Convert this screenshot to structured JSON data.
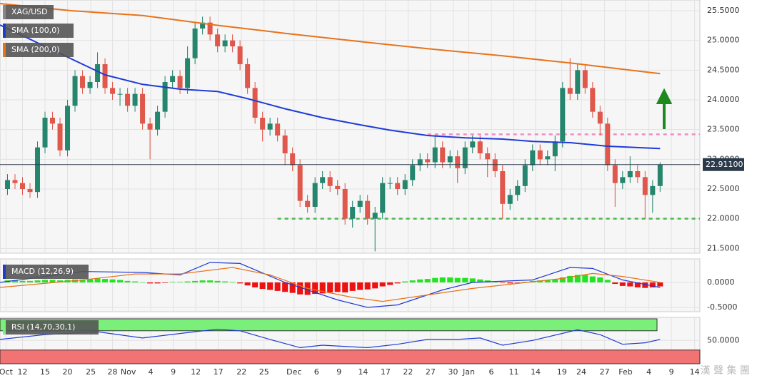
{
  "chart_data": [
    {
      "type": "candlestick",
      "name": "XAG/USD",
      "color_up": "#26866d",
      "color_down": "#e0574b",
      "xlim": [
        -1,
        92.3
      ],
      "ylim": [
        21.42,
        25.68
      ],
      "grid": true,
      "yticks": [
        {
          "value": 21.5,
          "label": "21.5000"
        },
        {
          "value": 22.0,
          "label": "22.0000"
        },
        {
          "value": 22.5,
          "label": "22.5000"
        },
        {
          "value": 23.0,
          "label": "23.0000"
        },
        {
          "value": 23.5,
          "label": "23.5000"
        },
        {
          "value": 24.0,
          "label": "24.0000"
        },
        {
          "value": 24.5,
          "label": "24.5000"
        },
        {
          "value": 25.0,
          "label": "25.0000"
        },
        {
          "value": 25.5,
          "label": "25.5000"
        }
      ],
      "open": [
        22.5,
        22.65,
        22.6,
        22.5,
        22.45,
        23.2,
        23.7,
        23.6,
        23.15,
        23.9,
        24.4,
        24.2,
        24.3,
        24.6,
        24.2,
        24.1,
        24.1,
        23.9,
        24.1,
        23.6,
        23.5,
        23.8,
        24.3,
        24.4,
        24.2,
        24.7,
        25.2,
        25.3,
        25.1,
        24.9,
        25.0,
        24.9,
        24.6,
        24.2,
        23.7,
        23.5,
        23.6,
        23.4,
        23.1,
        22.9,
        22.3,
        22.2,
        22.6,
        22.7,
        22.55,
        22.5,
        22.0,
        22.2,
        22.3,
        22.0,
        22.1,
        22.6,
        22.6,
        22.5,
        22.65,
        22.9,
        23.0,
        22.95,
        23.2,
        22.95,
        23.05,
        22.85,
        23.2,
        23.3,
        23.1,
        23.0,
        22.8,
        22.25,
        22.4,
        22.55,
        22.9,
        23.15,
        23.0,
        23.05,
        23.3,
        24.2,
        24.1,
        24.5,
        24.2,
        23.8,
        23.6,
        22.9,
        22.6,
        22.7,
        22.8,
        22.7,
        22.4,
        22.55
      ],
      "high": [
        22.75,
        22.75,
        22.7,
        22.6,
        23.3,
        23.8,
        23.8,
        23.7,
        24.0,
        24.5,
        24.5,
        24.4,
        24.8,
        24.7,
        24.3,
        24.2,
        24.2,
        24.2,
        24.2,
        23.7,
        23.9,
        24.4,
        24.5,
        24.5,
        24.9,
        25.3,
        25.4,
        25.4,
        25.2,
        25.1,
        25.1,
        25.0,
        24.7,
        24.3,
        23.8,
        23.7,
        23.7,
        23.5,
        23.2,
        23.0,
        22.4,
        22.7,
        22.8,
        22.8,
        22.65,
        22.6,
        22.3,
        22.4,
        22.4,
        22.2,
        22.7,
        22.7,
        22.7,
        22.75,
        23.0,
        23.1,
        23.1,
        23.4,
        23.3,
        23.15,
        23.15,
        23.3,
        23.4,
        23.4,
        23.2,
        23.1,
        22.9,
        22.5,
        22.65,
        23.0,
        23.25,
        23.25,
        23.15,
        23.4,
        24.3,
        24.7,
        24.6,
        24.6,
        24.3,
        23.9,
        23.7,
        23.0,
        22.8,
        23.05,
        22.9,
        22.8,
        22.65,
        22.95
      ],
      "low": [
        22.4,
        22.5,
        22.4,
        22.35,
        22.35,
        23.1,
        23.5,
        23.05,
        23.05,
        23.8,
        24.1,
        24.1,
        24.2,
        24.1,
        24.0,
        23.9,
        23.8,
        23.8,
        23.5,
        23.0,
        23.4,
        23.7,
        24.2,
        24.1,
        24.1,
        24.6,
        25.1,
        25.0,
        24.8,
        24.8,
        24.8,
        24.5,
        24.1,
        23.6,
        23.3,
        23.4,
        23.3,
        22.9,
        22.8,
        22.2,
        22.1,
        22.1,
        22.5,
        22.45,
        22.4,
        21.9,
        21.85,
        22.1,
        21.9,
        21.45,
        22.0,
        22.5,
        22.4,
        22.4,
        22.55,
        22.8,
        22.85,
        22.85,
        22.85,
        22.85,
        22.6,
        22.75,
        23.1,
        23.0,
        22.7,
        22.7,
        22.0,
        22.15,
        22.3,
        22.45,
        22.8,
        22.9,
        22.9,
        22.8,
        23.2,
        24.0,
        24.0,
        24.1,
        23.7,
        23.4,
        22.8,
        22.2,
        22.5,
        22.6,
        22.6,
        22.0,
        22.1,
        22.45
      ],
      "close": [
        22.65,
        22.6,
        22.5,
        22.45,
        23.2,
        23.7,
        23.6,
        23.15,
        23.9,
        24.4,
        24.2,
        24.3,
        24.6,
        24.2,
        24.1,
        24.1,
        23.9,
        24.1,
        23.6,
        23.5,
        23.8,
        24.3,
        24.4,
        24.2,
        24.7,
        25.2,
        25.3,
        25.1,
        24.9,
        25.0,
        24.9,
        24.6,
        24.2,
        23.7,
        23.5,
        23.6,
        23.4,
        23.1,
        22.9,
        22.3,
        22.2,
        22.6,
        22.7,
        22.55,
        22.5,
        22.0,
        22.2,
        22.3,
        22.0,
        22.1,
        22.6,
        22.6,
        22.5,
        22.65,
        22.9,
        23.0,
        22.95,
        23.2,
        22.95,
        23.05,
        22.85,
        23.2,
        23.3,
        23.1,
        23.0,
        22.8,
        22.25,
        22.4,
        22.55,
        22.9,
        23.15,
        23.0,
        23.05,
        23.3,
        24.2,
        24.1,
        24.5,
        24.2,
        23.8,
        23.6,
        22.9,
        22.6,
        22.7,
        22.8,
        22.7,
        22.4,
        22.55,
        22.91
      ],
      "overlays": [
        {
          "name": "SMA (100,0)",
          "color": "#1f3bd6",
          "x": [
            -1,
            4,
            9,
            13,
            18,
            23,
            28,
            32,
            37,
            42,
            47,
            51,
            56,
            61,
            66,
            70,
            75,
            80,
            87
          ],
          "values": [
            25.26,
            24.96,
            24.66,
            24.42,
            24.26,
            24.18,
            24.14,
            24.02,
            23.85,
            23.7,
            23.58,
            23.49,
            23.4,
            23.36,
            23.34,
            23.3,
            23.28,
            23.22,
            23.18
          ]
        },
        {
          "name": "SMA (200,0)",
          "color": "#e8731a",
          "x": [
            -1,
            8.5,
            18,
            27.6,
            37,
            47,
            56,
            66,
            75,
            87
          ],
          "values": [
            25.62,
            25.5,
            25.42,
            25.26,
            25.12,
            24.98,
            24.86,
            24.74,
            24.62,
            24.44
          ]
        }
      ],
      "hlines": [
        {
          "value": 22.0,
          "color": "#4cb84c",
          "from": 36
        },
        {
          "value": 23.42,
          "color": "#f28cc0",
          "from": 56
        }
      ],
      "last_price": {
        "value": 22.911,
        "label": "22.91100"
      }
    },
    {
      "type": "macd",
      "name": "MACD (12,26,9)",
      "xlim": [
        -1,
        92.3
      ],
      "ylim": [
        -0.586,
        0.471
      ],
      "yticks": [
        {
          "value": 0,
          "label": "0.0000"
        },
        {
          "value": -0.5,
          "label": "-0.5000"
        }
      ],
      "color_up": "#22e322",
      "color_down": "#ee1111",
      "histogram": [
        0.04,
        0.04,
        0.03,
        0.03,
        0.04,
        0.05,
        0.05,
        0.04,
        0.05,
        0.06,
        0.06,
        0.07,
        0.08,
        0.07,
        0.06,
        0.05,
        0.03,
        0.02,
        0.0,
        -0.02,
        -0.02,
        -0.01,
        0.01,
        0.01,
        0.02,
        0.03,
        0.04,
        0.04,
        0.03,
        0.02,
        0.01,
        -0.02,
        -0.06,
        -0.1,
        -0.13,
        -0.15,
        -0.17,
        -0.19,
        -0.21,
        -0.24,
        -0.25,
        -0.23,
        -0.22,
        -0.2,
        -0.19,
        -0.2,
        -0.17,
        -0.15,
        -0.14,
        -0.12,
        -0.08,
        -0.05,
        -0.02,
        0.02,
        0.04,
        0.06,
        0.07,
        0.09,
        0.1,
        0.1,
        0.09,
        0.09,
        0.08,
        0.06,
        0.04,
        0.02,
        -0.01,
        -0.02,
        -0.01,
        0.01,
        0.03,
        0.04,
        0.05,
        0.06,
        0.1,
        0.13,
        0.15,
        0.15,
        0.12,
        0.1,
        0.05,
        -0.03,
        -0.07,
        -0.08,
        -0.1,
        -0.11,
        -0.1,
        -0.08
      ],
      "lines": [
        {
          "color": "#1f3bd6",
          "x": [
            -1,
            10,
            18,
            23,
            27,
            31,
            37,
            44,
            48,
            52,
            58,
            62,
            70,
            75,
            78,
            82,
            87
          ],
          "values": [
            0.0,
            0.22,
            0.2,
            0.15,
            0.4,
            0.38,
            0.0,
            -0.35,
            -0.5,
            -0.45,
            -0.15,
            0.0,
            0.05,
            0.3,
            0.28,
            0.05,
            -0.1
          ]
        },
        {
          "color": "#e8731a",
          "x": [
            -1,
            10,
            17,
            23,
            30,
            35,
            40,
            46,
            50,
            56,
            62,
            68,
            74,
            78,
            82,
            87
          ],
          "values": [
            -0.1,
            0.05,
            0.17,
            0.17,
            0.3,
            0.15,
            -0.12,
            -0.3,
            -0.38,
            -0.25,
            -0.12,
            -0.02,
            0.08,
            0.18,
            0.12,
            0.0
          ]
        }
      ]
    },
    {
      "type": "rsi",
      "name": "RSI (14,70,30,1)",
      "xlim": [
        -1,
        92.3
      ],
      "ylim": [
        1.5,
        97.8
      ],
      "yticks": [
        {
          "value": 50,
          "label": "50.0000"
        }
      ],
      "upper": 70,
      "lower": 30,
      "upper_color": "#7af07a",
      "lower_color": "#f27373",
      "lines": [
        {
          "color": "#1f3bd6",
          "x": [
            -1,
            5,
            12,
            18,
            25,
            28,
            31,
            35,
            39,
            42,
            48,
            52,
            56,
            60,
            63,
            66,
            70,
            76,
            79,
            82,
            85,
            87
          ],
          "values": [
            52,
            62,
            68,
            55,
            68,
            73,
            70,
            52,
            35,
            40,
            35,
            42,
            52,
            52,
            55,
            40,
            50,
            72,
            62,
            42,
            45,
            52
          ]
        }
      ],
      "xticks": [
        {
          "value": -0.2,
          "label": "Oct"
        },
        {
          "value": 2,
          "label": "12"
        },
        {
          "value": 5,
          "label": "15"
        },
        {
          "value": 8,
          "label": "20"
        },
        {
          "value": 11.1,
          "label": "25"
        },
        {
          "value": 14,
          "label": "28"
        },
        {
          "value": 16.1,
          "label": "Nov"
        },
        {
          "value": 19.1,
          "label": "4"
        },
        {
          "value": 22.1,
          "label": "9"
        },
        {
          "value": 25.1,
          "label": "12"
        },
        {
          "value": 28.1,
          "label": "17"
        },
        {
          "value": 31.2,
          "label": "22"
        },
        {
          "value": 34.2,
          "label": "25"
        },
        {
          "value": 38.2,
          "label": "Dec"
        },
        {
          "value": 41.2,
          "label": "6"
        },
        {
          "value": 44.2,
          "label": "9"
        },
        {
          "value": 47.4,
          "label": "14"
        },
        {
          "value": 50.4,
          "label": "17"
        },
        {
          "value": 53.4,
          "label": "22"
        },
        {
          "value": 56.4,
          "label": "27"
        },
        {
          "value": 59.4,
          "label": "30"
        },
        {
          "value": 61.5,
          "label": "Jan"
        },
        {
          "value": 64.5,
          "label": "6"
        },
        {
          "value": 67.5,
          "label": "11"
        },
        {
          "value": 70.4,
          "label": "14"
        },
        {
          "value": 73.9,
          "label": "19"
        },
        {
          "value": 76.5,
          "label": "24"
        },
        {
          "value": 79.6,
          "label": "27"
        },
        {
          "value": 82.4,
          "label": "Feb"
        },
        {
          "value": 85.5,
          "label": "4"
        },
        {
          "value": 88.5,
          "label": "9"
        },
        {
          "value": 91.6,
          "label": "14"
        }
      ]
    }
  ],
  "watermark": "漢 聲 集 團"
}
